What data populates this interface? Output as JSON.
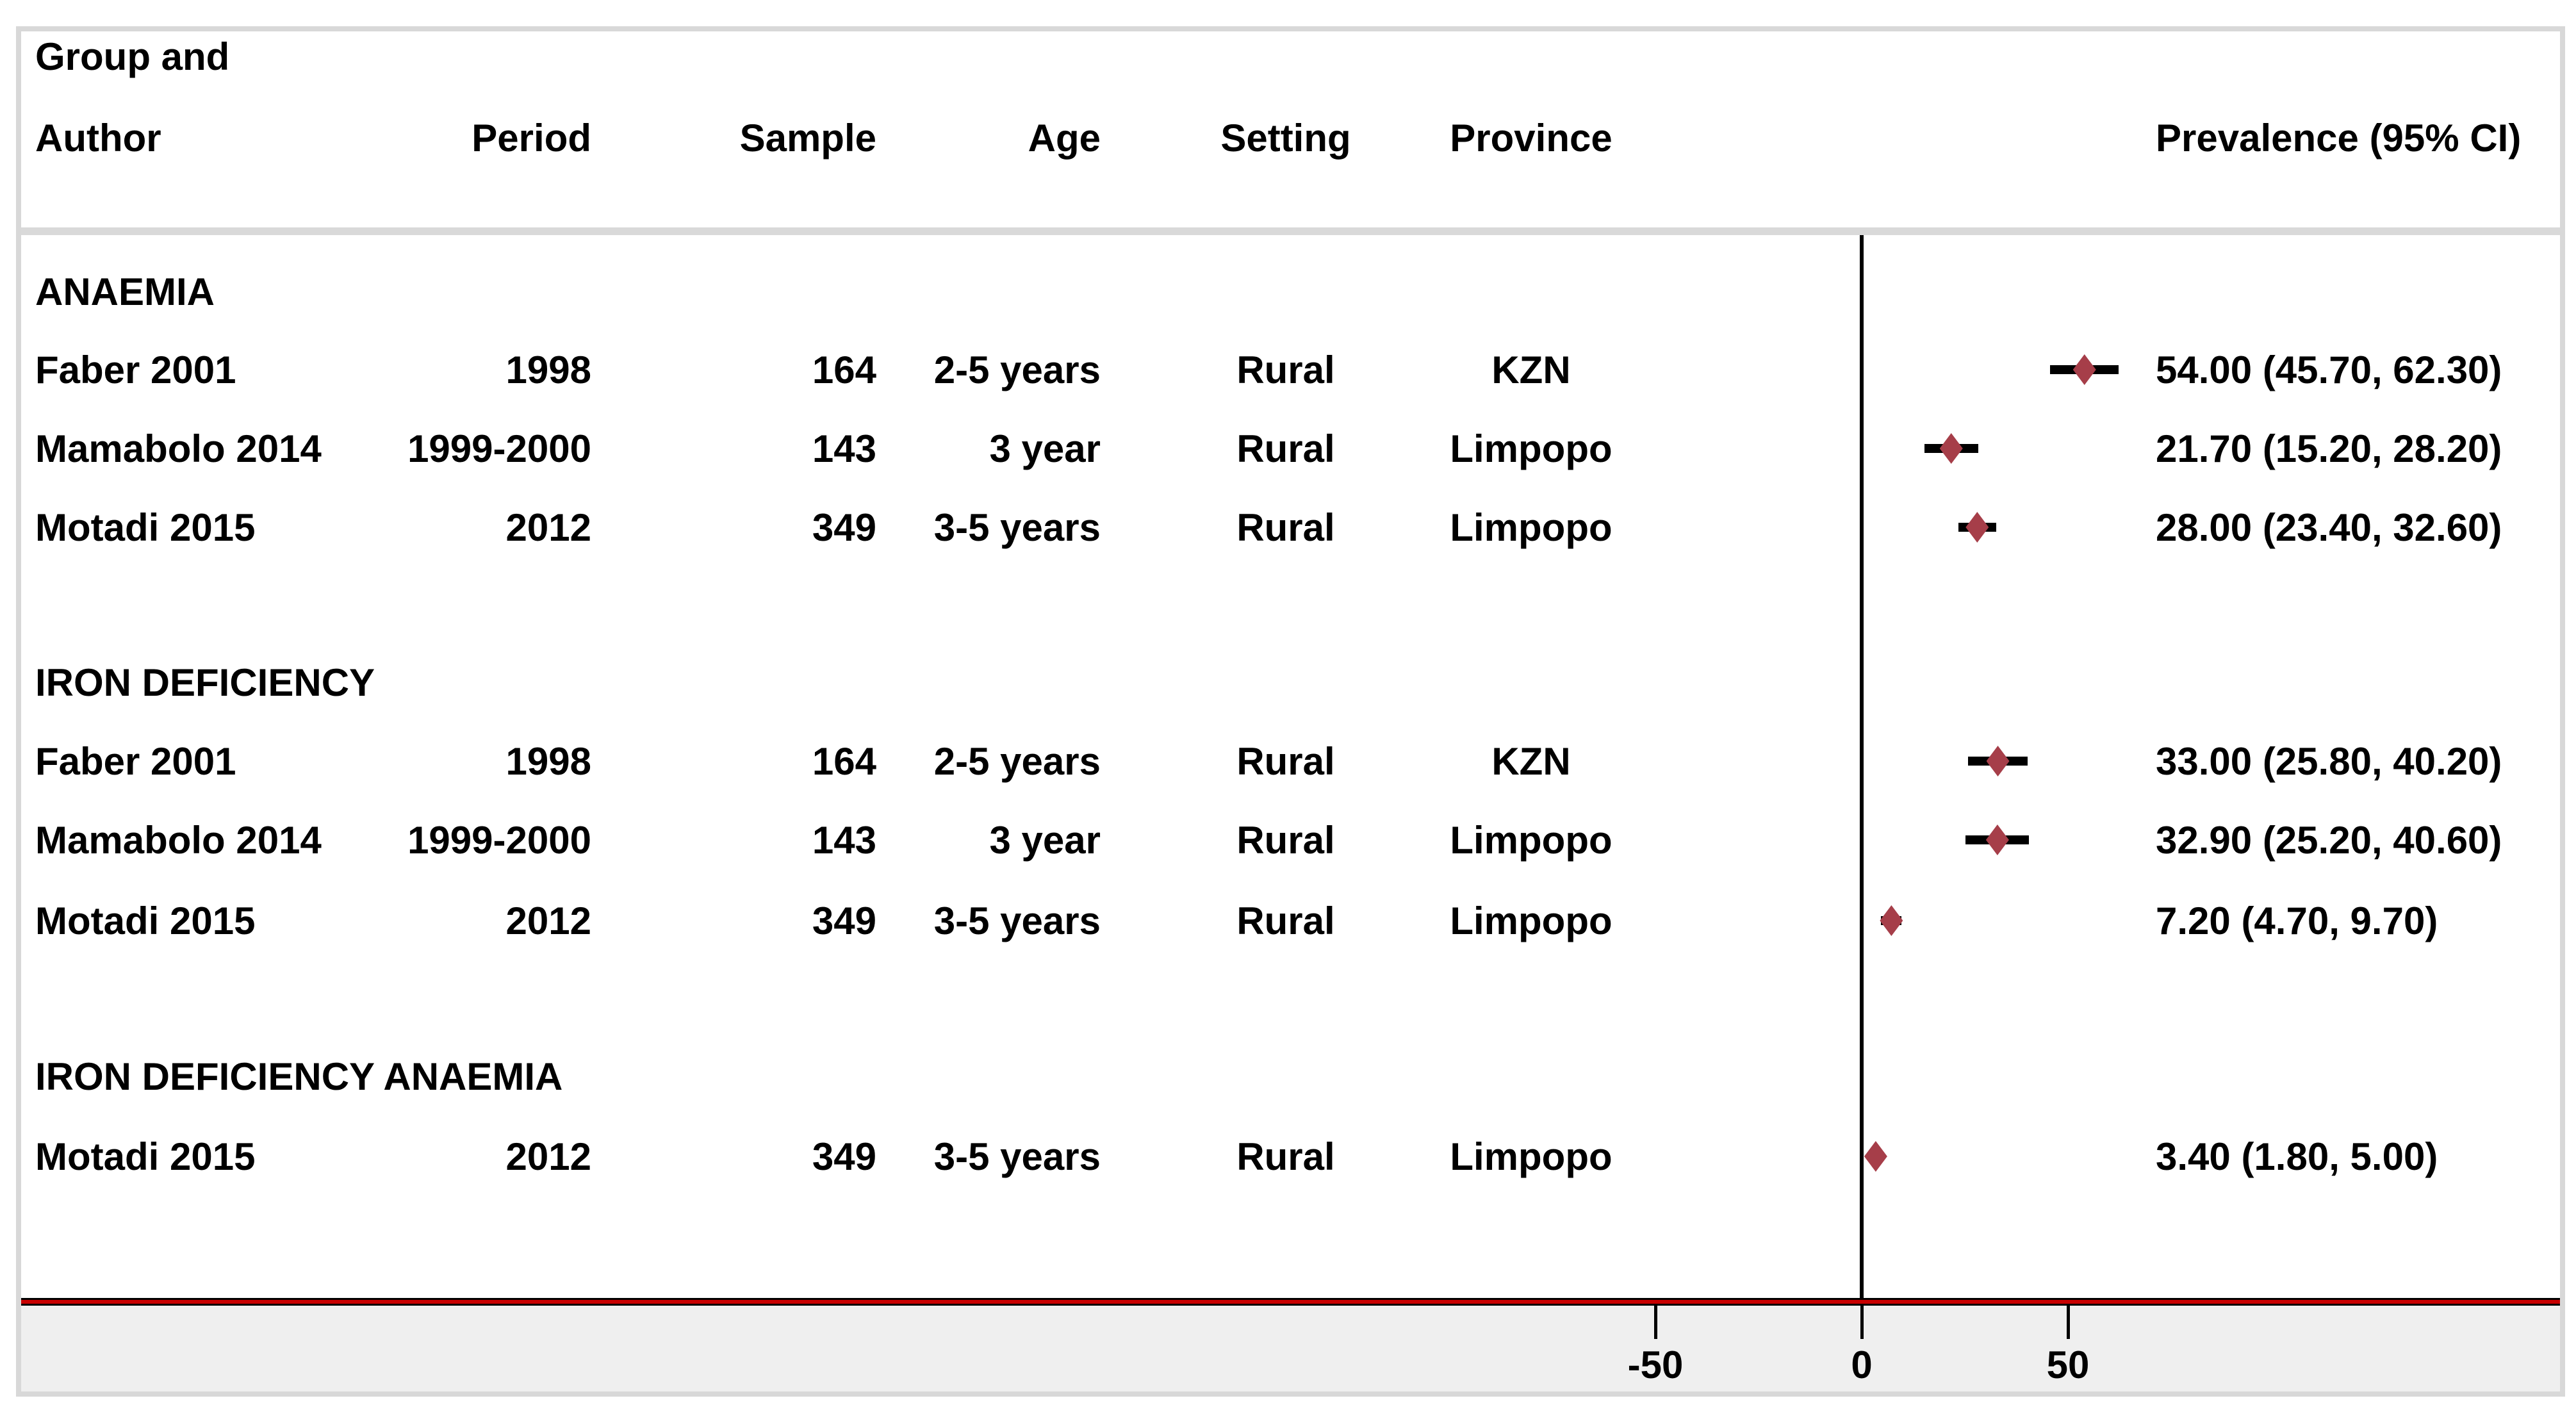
{
  "header": {
    "line1": "Group and",
    "col_author": "Author",
    "col_period": "Period",
    "col_sample": "Sample",
    "col_age": "Age",
    "col_setting": "Setting",
    "col_province": "Province",
    "col_prevalence": "Prevalence (95% CI)"
  },
  "colors": {
    "diamond": "#a63e49",
    "baseline_red": "#c80000",
    "band_gray": "#efefef",
    "frame_border": "#d8d8d8",
    "divider_gray": "#d9d9d9",
    "text": "#000000"
  },
  "chart_data": {
    "type": "forest",
    "title": "",
    "xlabel": "",
    "value_unit": "prevalence (%)",
    "zero_reference_line": 0,
    "xticks": [
      {
        "value": -50,
        "label": "-50"
      },
      {
        "value": 0,
        "label": "0"
      },
      {
        "value": 50,
        "label": "50"
      }
    ],
    "sections": [
      {
        "label": "ANAEMIA",
        "studies": [
          {
            "author": "Faber 2001",
            "period": "1998",
            "sample": "164",
            "age": "2-5 years",
            "setting": "Rural",
            "province": "KZN",
            "estimate": 54.0,
            "ci_low": 45.7,
            "ci_high": 62.3,
            "display": "54.00 (45.70, 62.30)"
          },
          {
            "author": "Mamabolo 2014",
            "period": "1999-2000",
            "sample": "143",
            "age": "3 year",
            "setting": "Rural",
            "province": "Limpopo",
            "estimate": 21.7,
            "ci_low": 15.2,
            "ci_high": 28.2,
            "display": "21.70 (15.20, 28.20)"
          },
          {
            "author": "Motadi 2015",
            "period": "2012",
            "sample": "349",
            "age": "3-5 years",
            "setting": "Rural",
            "province": "Limpopo",
            "estimate": 28.0,
            "ci_low": 23.4,
            "ci_high": 32.6,
            "display": "28.00 (23.40, 32.60)"
          }
        ]
      },
      {
        "label": "IRON DEFICIENCY",
        "studies": [
          {
            "author": "Faber 2001",
            "period": "1998",
            "sample": "164",
            "age": "2-5 years",
            "setting": "Rural",
            "province": "KZN",
            "estimate": 33.0,
            "ci_low": 25.8,
            "ci_high": 40.2,
            "display": "33.00 (25.80, 40.20)"
          },
          {
            "author": "Mamabolo 2014",
            "period": "1999-2000",
            "sample": "143",
            "age": "3 year",
            "setting": "Rural",
            "province": "Limpopo",
            "estimate": 32.9,
            "ci_low": 25.2,
            "ci_high": 40.6,
            "display": "32.90 (25.20, 40.60)"
          },
          {
            "author": "Motadi 2015",
            "period": "2012",
            "sample": "349",
            "age": "3-5 years",
            "setting": "Rural",
            "province": "Limpopo",
            "estimate": 7.2,
            "ci_low": 4.7,
            "ci_high": 9.7,
            "display": "7.20 (4.70, 9.70)"
          }
        ]
      },
      {
        "label": "IRON DEFICIENCY ANAEMIA",
        "studies": [
          {
            "author": "Motadi 2015",
            "period": "2012",
            "sample": "349",
            "age": "3-5 years",
            "setting": "Rural",
            "province": "Limpopo",
            "estimate": 3.4,
            "ci_low": 1.8,
            "ci_high": 5.0,
            "display": "3.40 (1.80, 5.00)"
          }
        ]
      }
    ]
  }
}
